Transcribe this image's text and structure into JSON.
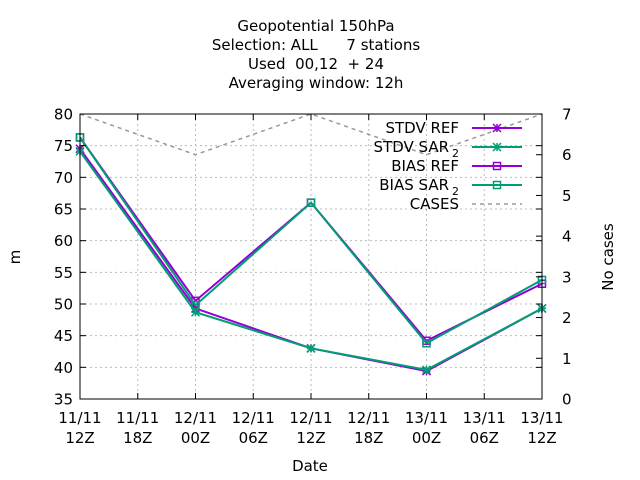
{
  "chart_data": {
    "type": "line",
    "title_lines": [
      "Geopotential 150hPa",
      "Selection: ALL      7 stations",
      "Used  00,12  + 24",
      "Averaging window: 12h"
    ],
    "xlabel": "Date",
    "ylabel": "m",
    "y2label": "No cases",
    "x_ticks": [
      {
        "line1": "11/11",
        "line2": "12Z"
      },
      {
        "line1": "11/11",
        "line2": "18Z"
      },
      {
        "line1": "12/11",
        "line2": "00Z"
      },
      {
        "line1": "12/11",
        "line2": "06Z"
      },
      {
        "line1": "12/11",
        "line2": "12Z"
      },
      {
        "line1": "12/11",
        "line2": "18Z"
      },
      {
        "line1": "13/11",
        "line2": "00Z"
      },
      {
        "line1": "13/11",
        "line2": "06Z"
      },
      {
        "line1": "13/11",
        "line2": "12Z"
      }
    ],
    "xlim": [
      0,
      8
    ],
    "ylim": [
      35,
      80
    ],
    "y_ticks": [
      "35",
      "40",
      "45",
      "50",
      "55",
      "60",
      "65",
      "70",
      "75",
      "80"
    ],
    "y2lim": [
      0,
      7
    ],
    "y2_ticks": [
      "0",
      "1",
      "2",
      "3",
      "4",
      "5",
      "6",
      "7"
    ],
    "grid": true,
    "legend_position": "top-right",
    "series": [
      {
        "name": "STDV REF",
        "axis": "y",
        "color": "#9400d3",
        "marker": "star",
        "dash": "",
        "x": [
          0,
          2,
          4,
          6,
          8
        ],
        "values": [
          74.5,
          49.3,
          43.0,
          39.4,
          49.3
        ]
      },
      {
        "name": "STDV SAR_2",
        "axis": "y",
        "color": "#009e73",
        "marker": "star",
        "dash": "",
        "x": [
          0,
          2,
          4,
          6,
          8
        ],
        "values": [
          74.1,
          48.7,
          43.0,
          39.6,
          49.3
        ]
      },
      {
        "name": "BIAS REF",
        "axis": "y",
        "color": "#9400d3",
        "marker": "square",
        "dash": "",
        "x": [
          0,
          2,
          4,
          6,
          8
        ],
        "values": [
          76.3,
          50.5,
          66.0,
          44.2,
          53.2
        ]
      },
      {
        "name": "BIAS SAR_2",
        "axis": "y",
        "color": "#009e73",
        "marker": "square",
        "dash": "",
        "x": [
          0,
          2,
          4,
          6,
          8
        ],
        "values": [
          76.3,
          49.8,
          66.0,
          43.8,
          53.8
        ]
      },
      {
        "name": "CASES",
        "axis": "y2",
        "color": "#999999",
        "marker": "none",
        "dash": "4,4",
        "x": [
          0,
          2,
          4,
          6,
          8
        ],
        "values": [
          7,
          6,
          7,
          6,
          7
        ]
      }
    ],
    "legend": [
      {
        "label": "STDV REF",
        "sub": ""
      },
      {
        "label": "STDV SAR",
        "sub": "2"
      },
      {
        "label": "BIAS REF",
        "sub": ""
      },
      {
        "label": "BIAS SAR",
        "sub": "2"
      },
      {
        "label": "CASES",
        "sub": ""
      }
    ]
  }
}
